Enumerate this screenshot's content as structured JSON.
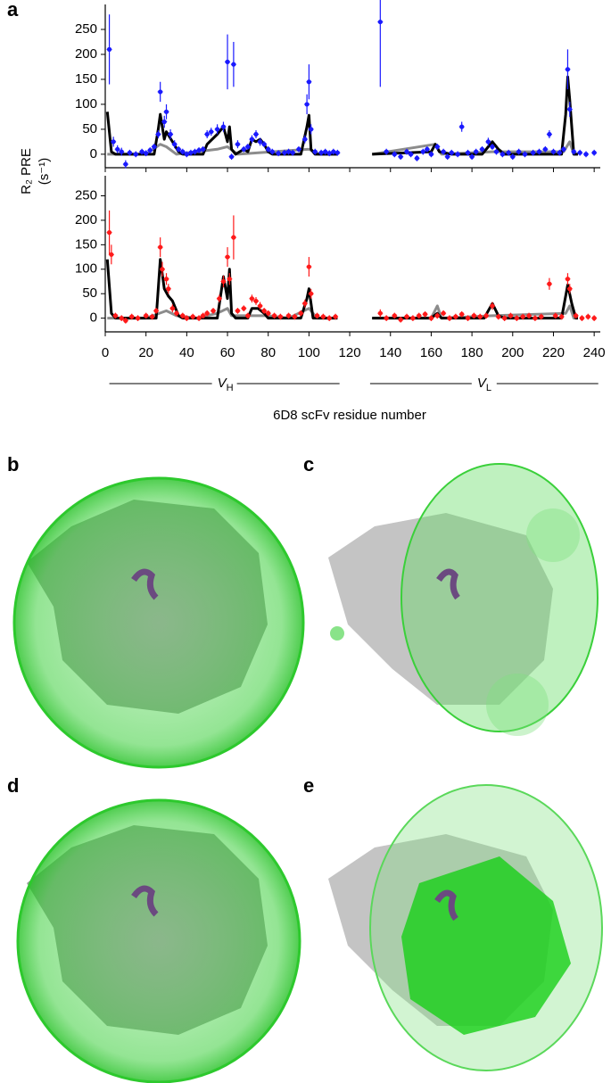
{
  "panel_labels": [
    "a",
    "b",
    "c",
    "d",
    "e"
  ],
  "y_label": [
    "R₂ PRE",
    "(s⁻¹)"
  ],
  "x_label": "6D8 scFv residue number",
  "regions": [
    {
      "name": "V",
      "subscript": "H",
      "start": 2,
      "end": 115
    },
    {
      "name": "V",
      "subscript": "L",
      "start": 130,
      "end": 242
    }
  ],
  "chart_data": [
    {
      "type": "scatter",
      "xlim": [
        0,
        243
      ],
      "xticks": [
        0,
        20,
        40,
        60,
        80,
        100,
        120,
        140,
        160,
        180,
        200,
        220,
        240
      ],
      "ylim": [
        -27,
        300
      ],
      "yticks": [
        0,
        50,
        100,
        150,
        200,
        250
      ],
      "series": [
        {
          "style": "line",
          "color": "#8c8c8c",
          "x": [
            1,
            20,
            27,
            30,
            35,
            55,
            60,
            65,
            100,
            105,
            114,
            122,
            131,
            162,
            165,
            190,
            225,
            228,
            230,
            232
          ],
          "values": [
            0,
            0,
            20,
            15,
            0,
            10,
            15,
            0,
            10,
            0,
            0,
            null,
            0,
            20,
            0,
            5,
            5,
            25,
            0,
            0
          ]
        },
        {
          "style": "line",
          "color": "#000000",
          "x": [
            1,
            3,
            5,
            24,
            26,
            27,
            29,
            30,
            33,
            36,
            38,
            48,
            50,
            55,
            58,
            60,
            61,
            62,
            64,
            68,
            70,
            72,
            74,
            76,
            78,
            80,
            82,
            96,
            99,
            100,
            101,
            103,
            114,
            122,
            131,
            160,
            162,
            164,
            170,
            185,
            188,
            190,
            193,
            196,
            224,
            226,
            227,
            228,
            230,
            232
          ],
          "values": [
            85,
            5,
            0,
            0,
            50,
            80,
            30,
            45,
            25,
            5,
            0,
            0,
            20,
            40,
            55,
            25,
            55,
            10,
            0,
            10,
            5,
            30,
            25,
            30,
            20,
            5,
            0,
            0,
            55,
            78,
            10,
            0,
            0,
            null,
            0,
            5,
            20,
            5,
            0,
            0,
            15,
            25,
            10,
            0,
            0,
            80,
            155,
            110,
            0,
            0
          ]
        },
        {
          "style": "errorbar",
          "color": "#1a1aff",
          "x": [
            2,
            4,
            6,
            8,
            10,
            12,
            15,
            18,
            20,
            22,
            24,
            26,
            27,
            29,
            30,
            32,
            34,
            36,
            38,
            40,
            42,
            44,
            46,
            48,
            50,
            52,
            55,
            58,
            60,
            62,
            63,
            65,
            68,
            70,
            72,
            74,
            76,
            78,
            80,
            82,
            85,
            88,
            90,
            92,
            95,
            98,
            99,
            100,
            101,
            103,
            106,
            108,
            110,
            112,
            114,
            135,
            138,
            142,
            145,
            148,
            150,
            153,
            156,
            158,
            160,
            163,
            166,
            168,
            170,
            173,
            175,
            178,
            180,
            182,
            185,
            188,
            190,
            192,
            195,
            198,
            200,
            203,
            206,
            210,
            213,
            216,
            218,
            220,
            223,
            225,
            227,
            228,
            230,
            233,
            236,
            240
          ],
          "values": [
            210,
            25,
            10,
            5,
            -20,
            3,
            0,
            5,
            2,
            8,
            15,
            40,
            125,
            65,
            85,
            40,
            20,
            10,
            5,
            0,
            3,
            5,
            8,
            10,
            40,
            45,
            50,
            55,
            185,
            -5,
            180,
            20,
            10,
            15,
            30,
            40,
            25,
            20,
            10,
            5,
            2,
            3,
            5,
            3,
            10,
            30,
            100,
            145,
            50,
            5,
            3,
            5,
            2,
            5,
            3,
            265,
            5,
            0,
            -5,
            5,
            0,
            -8,
            5,
            10,
            0,
            15,
            5,
            -5,
            3,
            0,
            55,
            3,
            -5,
            5,
            10,
            25,
            15,
            5,
            0,
            3,
            -5,
            5,
            0,
            3,
            5,
            10,
            40,
            5,
            3,
            10,
            170,
            90,
            5,
            3,
            0,
            3
          ],
          "errors": [
            70,
            10,
            8,
            8,
            8,
            6,
            6,
            6,
            6,
            6,
            6,
            8,
            20,
            12,
            15,
            10,
            8,
            6,
            6,
            6,
            6,
            6,
            6,
            6,
            8,
            8,
            10,
            10,
            55,
            6,
            45,
            8,
            6,
            6,
            8,
            8,
            8,
            6,
            6,
            6,
            6,
            6,
            6,
            6,
            6,
            8,
            20,
            35,
            10,
            6,
            6,
            6,
            6,
            6,
            6,
            130,
            6,
            6,
            6,
            6,
            6,
            6,
            6,
            6,
            6,
            6,
            6,
            6,
            6,
            6,
            10,
            6,
            6,
            6,
            6,
            8,
            6,
            6,
            6,
            6,
            6,
            6,
            6,
            6,
            6,
            6,
            8,
            6,
            6,
            6,
            40,
            15,
            6,
            6,
            6,
            6
          ]
        }
      ]
    },
    {
      "type": "scatter",
      "xlim": [
        0,
        243
      ],
      "xticks": [
        0,
        20,
        40,
        60,
        80,
        100,
        120,
        140,
        160,
        180,
        200,
        220,
        240
      ],
      "ylim": [
        -28,
        291
      ],
      "yticks": [
        0,
        50,
        100,
        150,
        200,
        250
      ],
      "series": [
        {
          "style": "line",
          "color": "#8c8c8c",
          "x": [
            1,
            20,
            30,
            35,
            45,
            55,
            60,
            62,
            80,
            90,
            100,
            104,
            114,
            122,
            131,
            160,
            163,
            165,
            190,
            226,
            228,
            230,
            232
          ],
          "values": [
            0,
            0,
            15,
            5,
            0,
            10,
            20,
            5,
            5,
            0,
            20,
            0,
            0,
            null,
            0,
            0,
            25,
            0,
            5,
            10,
            25,
            0,
            0
          ]
        },
        {
          "style": "line",
          "color": "#000000",
          "x": [
            1,
            3,
            5,
            25,
            27,
            29,
            31,
            33,
            36,
            38,
            55,
            58,
            60,
            61,
            62,
            64,
            70,
            72,
            75,
            78,
            80,
            96,
            99,
            100,
            102,
            114,
            122,
            131,
            160,
            163,
            165,
            186,
            190,
            193,
            196,
            224,
            227,
            229,
            231,
            232
          ],
          "values": [
            120,
            10,
            0,
            0,
            120,
            60,
            45,
            35,
            5,
            0,
            0,
            85,
            40,
            100,
            10,
            0,
            0,
            20,
            20,
            10,
            0,
            0,
            40,
            60,
            0,
            0,
            null,
            0,
            0,
            10,
            0,
            0,
            30,
            5,
            0,
            0,
            68,
            30,
            0,
            0
          ]
        },
        {
          "style": "errorbar",
          "color": "#ff1a1a",
          "x": [
            2,
            3,
            5,
            8,
            10,
            13,
            16,
            20,
            23,
            25,
            27,
            28,
            30,
            31,
            33,
            35,
            38,
            40,
            43,
            46,
            48,
            50,
            53,
            56,
            58,
            60,
            61,
            63,
            65,
            68,
            70,
            72,
            74,
            76,
            78,
            80,
            83,
            86,
            90,
            93,
            96,
            98,
            100,
            101,
            104,
            107,
            110,
            113,
            135,
            138,
            142,
            145,
            148,
            151,
            154,
            157,
            160,
            163,
            166,
            169,
            172,
            175,
            178,
            181,
            184,
            187,
            190,
            193,
            196,
            199,
            202,
            205,
            208,
            211,
            214,
            218,
            221,
            224,
            227,
            228,
            231,
            234,
            237,
            240
          ],
          "values": [
            175,
            130,
            5,
            0,
            -5,
            3,
            0,
            5,
            3,
            15,
            145,
            100,
            80,
            60,
            20,
            10,
            5,
            0,
            3,
            0,
            5,
            10,
            15,
            40,
            75,
            125,
            80,
            165,
            15,
            20,
            5,
            40,
            35,
            25,
            15,
            10,
            5,
            3,
            5,
            3,
            10,
            30,
            105,
            50,
            5,
            3,
            0,
            3,
            10,
            0,
            5,
            -3,
            3,
            0,
            5,
            8,
            0,
            5,
            10,
            0,
            3,
            8,
            0,
            5,
            3,
            5,
            25,
            3,
            0,
            5,
            0,
            3,
            5,
            0,
            3,
            70,
            5,
            3,
            80,
            60,
            5,
            0,
            3,
            0
          ],
          "errors": [
            45,
            20,
            6,
            6,
            6,
            6,
            6,
            6,
            6,
            6,
            20,
            15,
            12,
            10,
            8,
            6,
            6,
            6,
            6,
            6,
            6,
            6,
            6,
            8,
            12,
            20,
            12,
            45,
            6,
            6,
            6,
            8,
            8,
            8,
            6,
            6,
            6,
            6,
            6,
            6,
            6,
            8,
            20,
            10,
            6,
            6,
            6,
            6,
            8,
            6,
            6,
            6,
            6,
            6,
            6,
            6,
            6,
            6,
            6,
            6,
            6,
            6,
            6,
            6,
            6,
            6,
            8,
            6,
            6,
            6,
            6,
            6,
            6,
            6,
            6,
            12,
            6,
            6,
            12,
            10,
            6,
            6,
            6,
            6
          ]
        }
      ]
    }
  ]
}
